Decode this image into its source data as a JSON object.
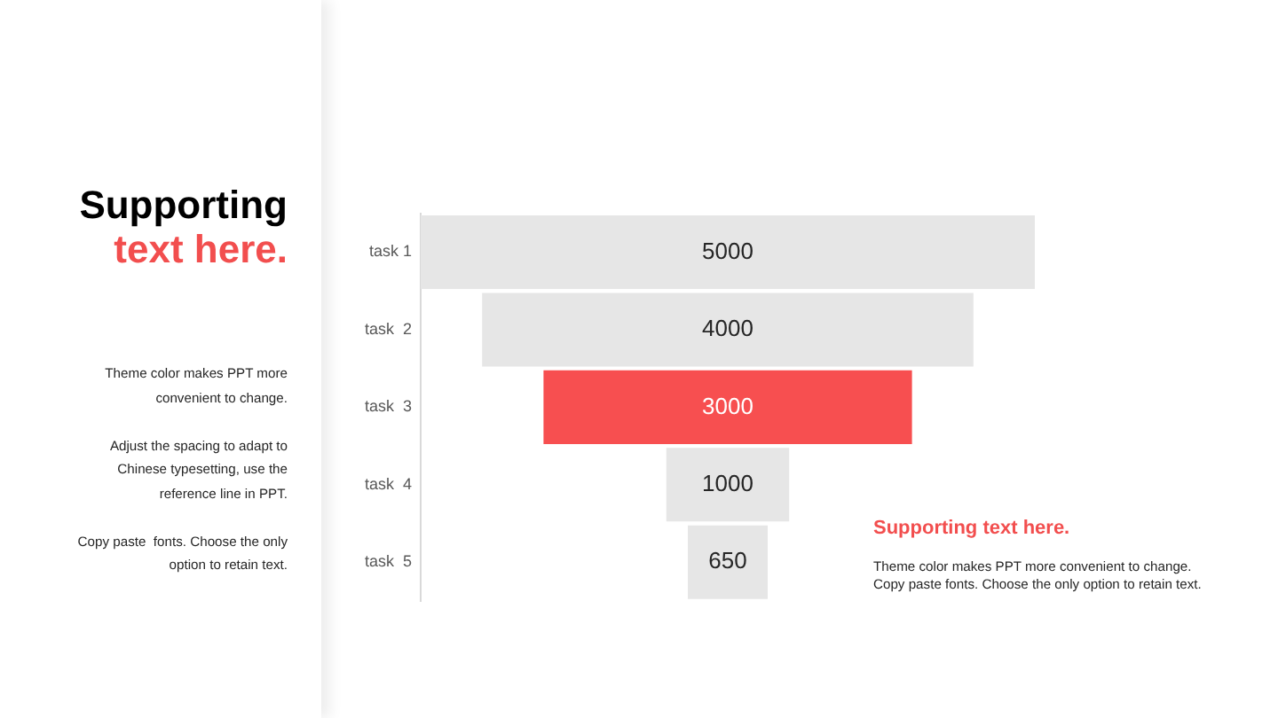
{
  "chart_data": {
    "type": "other",
    "title": "Supporting text here.",
    "categories": [
      "task 1",
      "task  2",
      "task  3",
      "task  4",
      "task  5"
    ],
    "values": [
      5000,
      4000,
      3000,
      1000,
      650
    ],
    "colors": [
      "#e6e6e6",
      "#e6e6e6",
      "#f74f50",
      "#e6e6e6",
      "#e6e6e6"
    ],
    "data_labels": true,
    "annotations": [
      "Theme color makes PPT more convenient to change.",
      "Adjust the spacing to adapt to Chinese typesetting, use the reference line in PPT.",
      "Copy paste  fonts. Choose the only option to retain text.",
      "Supporting text here.",
      "Theme color makes PPT more convenient to change. Copy paste fonts. Choose the only option to retain text."
    ]
  }
}
